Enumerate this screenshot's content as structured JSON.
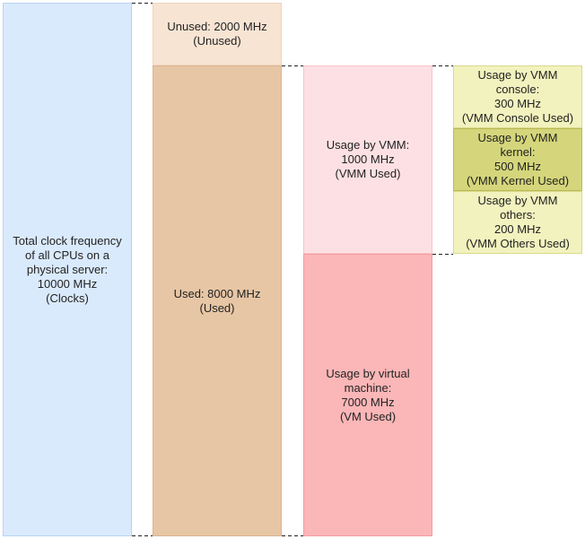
{
  "diagram": {
    "boxes": {
      "total": {
        "text": "Total clock frequency\nof all CPUs on a\nphysical server:\n10000 MHz\n(Clocks)",
        "fill": "#daeafd",
        "border": "#b7d3f4"
      },
      "unused": {
        "text": "Unused: 2000 MHz\n(Unused)",
        "fill": "#f7e4d3",
        "border": "#efd5bd"
      },
      "used": {
        "text": "Used: 8000 MHz\n(Used)",
        "fill": "#e7c6a5",
        "border": "#dcb491"
      },
      "vmm": {
        "text": "Usage by VMM:\n1000 MHz\n(VMM Used)",
        "fill": "#fde0e3",
        "border": "#f6c4c9"
      },
      "vm": {
        "text": "Usage by virtual\nmachine:\n7000 MHz\n(VM Used)",
        "fill": "#fbb6b7",
        "border": "#f39da0"
      },
      "vmm_console": {
        "text": "Usage by VMM\nconsole:\n300 MHz\n(VMM Console Used)",
        "fill": "#f2f2bf",
        "border": "#d9d98a"
      },
      "vmm_kernel": {
        "text": "Usage by VMM\nkernel:\n500 MHz\n(VMM Kernel Used)",
        "fill": "#d5d67b",
        "border": "#b9ba55"
      },
      "vmm_others": {
        "text": "Usage by VMM\nothers:\n200 MHz\n(VMM Others Used)",
        "fill": "#f2f2bf",
        "border": "#d9d98a"
      }
    },
    "connector_color": "#222222"
  }
}
